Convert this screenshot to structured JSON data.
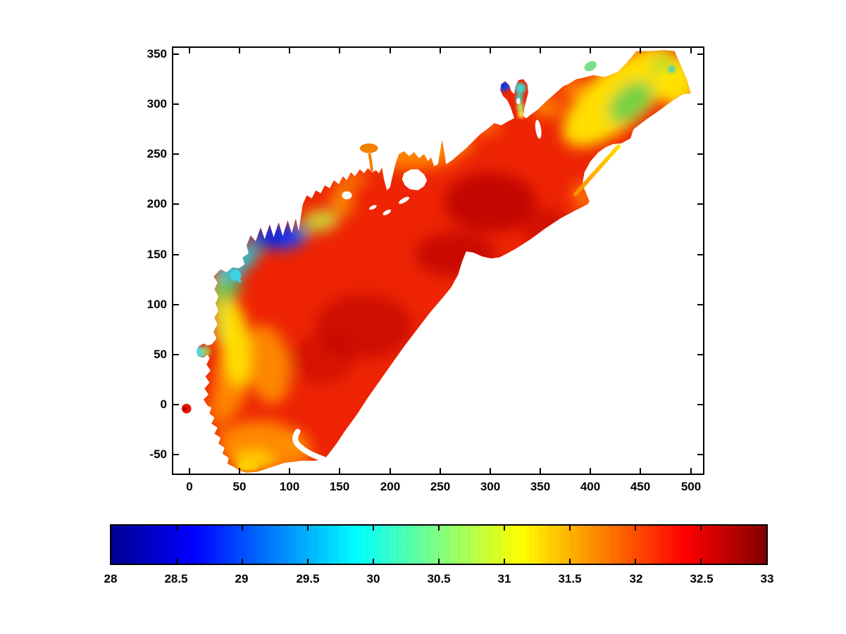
{
  "figure": {
    "background": "#FFFFFF"
  },
  "chart_data": {
    "type": "heatmap",
    "title": "",
    "xlabel": "",
    "ylabel": "",
    "grid": false,
    "description": "MATLAB-style pseudocolor (pcolor/jet) map of a scalar field (salinity-like, 28-33) over an irregular coastal bay model domain with estuaries, islands and an open offshore boundary arc",
    "xlim": [
      -17.6,
      513.7
    ],
    "ylim": [
      -69,
      358
    ],
    "x_ticks": [
      0,
      50,
      100,
      150,
      200,
      250,
      300,
      350,
      400,
      450,
      500
    ],
    "x_tick_labels": [
      "0",
      "50",
      "100",
      "150",
      "200",
      "250",
      "300",
      "350",
      "400",
      "450",
      "500"
    ],
    "y_ticks": [
      -50,
      0,
      50,
      100,
      150,
      200,
      250,
      300,
      350
    ],
    "y_tick_labels": [
      "-50",
      "0",
      "50",
      "100",
      "150",
      "200",
      "250",
      "300",
      "350"
    ],
    "colorbar": {
      "orientation": "horizontal",
      "min": 28,
      "max": 33,
      "ticks": [
        28,
        28.5,
        29,
        29.5,
        30,
        30.5,
        31,
        31.5,
        32,
        32.5,
        33
      ],
      "tick_labels": [
        "28",
        "28.5",
        "29",
        "29.5",
        "30",
        "30.5",
        "31",
        "31.5",
        "32",
        "32.5",
        "33"
      ],
      "colormap": "jet",
      "stops": [
        [
          0,
          "#00008F"
        ],
        [
          0.06,
          "#0000C8"
        ],
        [
          0.125,
          "#0000FF"
        ],
        [
          0.25,
          "#0080FF"
        ],
        [
          0.375,
          "#00FFFF"
        ],
        [
          0.5,
          "#80FF80"
        ],
        [
          0.625,
          "#FFFF00"
        ],
        [
          0.75,
          "#FF8000"
        ],
        [
          0.875,
          "#FF0000"
        ],
        [
          0.94,
          "#C00000"
        ],
        [
          1,
          "#800000"
        ]
      ]
    },
    "field_features": [
      {
        "region": "main basin interior",
        "approx_value": 32.3
      },
      {
        "region": "dark cores near (300,200), (265,150), (172,75)",
        "approx_value": 32.8
      },
      {
        "region": "NW river estuary, x 64-113, y 150-186",
        "approx_value": 28.2
      },
      {
        "region": "cyan-green band seaward of NW estuary",
        "approx_value": "29.5-30.5"
      },
      {
        "region": "west coastal yellow band, x 25-60",
        "approx_value": 31.1
      },
      {
        "region": "southwest tip lobe, y below -40",
        "approx_value": "31.3-31.6"
      },
      {
        "region": "north coast nearshore strip",
        "approx_value": 31.7
      },
      {
        "region": "NE rectangular arm",
        "approx_value": "30.5-31.2"
      },
      {
        "region": "NE arm green core near (440,300)",
        "approx_value": 30.2
      },
      {
        "region": "small twin-lobe estuary near (317/330, 316)",
        "approx_value": "28.5 / 30"
      },
      {
        "region": "west coast cyan inlets near (8,52) and (46,129)",
        "approx_value": 30
      },
      {
        "region": "detached red spot near origin",
        "approx_value": 32.4
      },
      {
        "region": "orange balloon inlet near (179,256)",
        "approx_value": 31.5
      }
    ]
  }
}
